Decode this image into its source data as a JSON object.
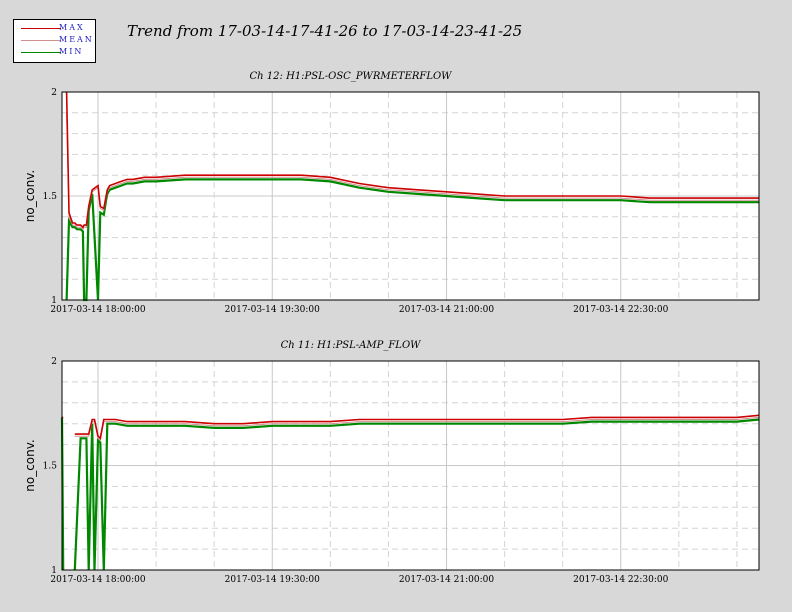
{
  "header": {
    "trend_title": "Trend from 17-03-14-17-41-26 to 17-03-14-23-41-25"
  },
  "legend": {
    "entries": [
      {
        "label": "MAX",
        "color": "#cc0000"
      },
      {
        "label": "MEAN",
        "color": "#d09090"
      },
      {
        "label": "MIN",
        "color": "#008800"
      }
    ]
  },
  "chart_data": [
    {
      "type": "line",
      "title": "Ch 12: H1:PSL-OSC_PWRMETERFLOW",
      "xlabel": "",
      "ylabel": "no_conv.",
      "ylim": [
        1,
        2
      ],
      "yticks": [
        "1",
        "1.5",
        "2"
      ],
      "xticks": [
        "2017-03-14 18:00:00",
        "2017-03-14 19:30:00",
        "2017-03-14 21:00:00",
        "2017-03-14 22:30:00"
      ],
      "x_hours": [
        17.69,
        17.72,
        17.73,
        17.75,
        17.78,
        17.8,
        17.82,
        17.85,
        17.87,
        17.88,
        17.9,
        17.92,
        17.95,
        18.0,
        18.02,
        18.05,
        18.07,
        18.08,
        18.1,
        18.15,
        18.2,
        18.25,
        18.3,
        18.4,
        18.5,
        18.75,
        19.0,
        19.25,
        19.5,
        19.75,
        20.0,
        20.25,
        20.5,
        20.75,
        21.0,
        21.25,
        21.5,
        21.75,
        22.0,
        22.25,
        22.5,
        22.75,
        23.0,
        23.25,
        23.5,
        23.69
      ],
      "series": [
        {
          "name": "MAX",
          "values": [
            null,
            null,
            2.0,
            1.42,
            1.37,
            1.37,
            1.36,
            1.36,
            1.35,
            1.36,
            1.36,
            1.45,
            1.53,
            1.55,
            1.45,
            1.44,
            1.5,
            1.53,
            1.55,
            1.56,
            1.57,
            1.58,
            1.58,
            1.59,
            1.59,
            1.6,
            1.6,
            1.6,
            1.6,
            1.6,
            1.59,
            1.56,
            1.54,
            1.53,
            1.52,
            1.51,
            1.5,
            1.5,
            1.5,
            1.5,
            1.5,
            1.49,
            1.49,
            1.49,
            1.49,
            1.49
          ]
        },
        {
          "name": "MEAN",
          "values": [
            null,
            null,
            1.9,
            1.4,
            1.36,
            1.36,
            1.35,
            1.35,
            1.34,
            1.35,
            1.35,
            1.44,
            1.52,
            1.54,
            1.44,
            1.43,
            1.49,
            1.52,
            1.54,
            1.55,
            1.56,
            1.57,
            1.57,
            1.58,
            1.58,
            1.59,
            1.59,
            1.59,
            1.59,
            1.59,
            1.58,
            1.55,
            1.53,
            1.52,
            1.51,
            1.5,
            1.49,
            1.49,
            1.49,
            1.49,
            1.49,
            1.48,
            1.48,
            1.48,
            1.48,
            1.48
          ]
        },
        {
          "name": "MIN",
          "values": [
            null,
            null,
            1.0,
            1.38,
            1.35,
            1.35,
            1.34,
            1.34,
            1.33,
            1.0,
            1.0,
            1.43,
            1.51,
            1.0,
            1.42,
            1.41,
            1.48,
            1.51,
            1.53,
            1.54,
            1.55,
            1.56,
            1.56,
            1.57,
            1.57,
            1.58,
            1.58,
            1.58,
            1.58,
            1.58,
            1.57,
            1.54,
            1.52,
            1.51,
            1.5,
            1.49,
            1.48,
            1.48,
            1.48,
            1.48,
            1.48,
            1.47,
            1.47,
            1.47,
            1.47,
            1.47
          ]
        }
      ]
    },
    {
      "type": "line",
      "title": "Ch 11: H1:PSL-AMP_FLOW",
      "xlabel": "",
      "ylabel": "no_conv.",
      "ylim": [
        1,
        2
      ],
      "yticks": [
        "1",
        "1.5",
        "2"
      ],
      "xticks": [
        "2017-03-14 18:00:00",
        "2017-03-14 19:30:00",
        "2017-03-14 21:00:00",
        "2017-03-14 22:30:00"
      ],
      "x_hours": [
        17.69,
        17.7,
        17.75,
        17.76,
        17.78,
        17.8,
        17.85,
        17.9,
        17.92,
        17.95,
        17.97,
        18.0,
        18.02,
        18.05,
        18.08,
        18.1,
        18.15,
        18.25,
        18.5,
        18.75,
        19.0,
        19.25,
        19.5,
        19.75,
        20.0,
        20.25,
        20.5,
        20.75,
        21.0,
        21.25,
        21.5,
        21.75,
        22.0,
        22.25,
        22.5,
        22.75,
        23.0,
        23.25,
        23.5,
        23.69
      ],
      "series": [
        {
          "name": "MAX",
          "values": [
            1.73,
            1.73,
            null,
            null,
            null,
            1.65,
            1.65,
            1.65,
            1.65,
            1.72,
            1.72,
            1.64,
            1.63,
            1.72,
            1.72,
            1.72,
            1.72,
            1.71,
            1.71,
            1.71,
            1.7,
            1.7,
            1.71,
            1.71,
            1.71,
            1.72,
            1.72,
            1.72,
            1.72,
            1.72,
            1.72,
            1.72,
            1.72,
            1.73,
            1.73,
            1.73,
            1.73,
            1.73,
            1.73,
            1.74
          ]
        },
        {
          "name": "MEAN",
          "values": [
            1.73,
            1.73,
            null,
            null,
            null,
            1.64,
            1.64,
            1.64,
            1.64,
            1.71,
            1.71,
            1.63,
            1.62,
            1.71,
            1.71,
            1.71,
            1.71,
            1.7,
            1.7,
            1.7,
            1.69,
            1.69,
            1.7,
            1.7,
            1.7,
            1.71,
            1.71,
            1.71,
            1.71,
            1.71,
            1.71,
            1.71,
            1.71,
            1.72,
            1.72,
            1.72,
            1.72,
            1.72,
            1.72,
            1.73
          ]
        },
        {
          "name": "MIN",
          "values": [
            1.73,
            1.0,
            null,
            null,
            null,
            1.0,
            1.63,
            1.63,
            1.0,
            1.7,
            1.0,
            1.62,
            1.61,
            1.0,
            1.7,
            1.7,
            1.7,
            1.69,
            1.69,
            1.69,
            1.68,
            1.68,
            1.69,
            1.69,
            1.69,
            1.7,
            1.7,
            1.7,
            1.7,
            1.7,
            1.7,
            1.7,
            1.7,
            1.71,
            1.71,
            1.71,
            1.71,
            1.71,
            1.71,
            1.72
          ]
        }
      ]
    }
  ]
}
